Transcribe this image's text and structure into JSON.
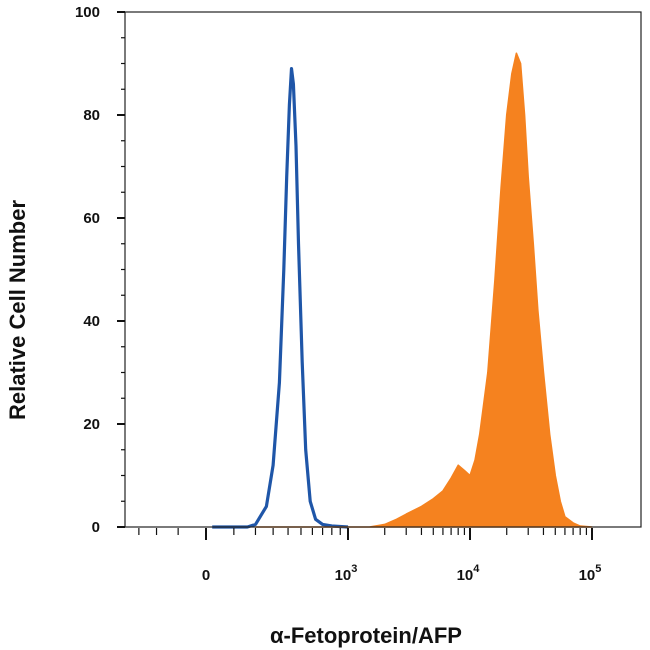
{
  "chart_data": {
    "type": "area",
    "xlabel": "α-Fetoprotein/AFP",
    "ylabel": "Relative Cell Number",
    "x_scale": "biexponential",
    "ylim": [
      0,
      100
    ],
    "y_ticks": [
      "0",
      "20",
      "40",
      "60",
      "80",
      "100"
    ],
    "x_ticks": [
      {
        "base": "0",
        "exp": ""
      },
      {
        "base": "10",
        "exp": "3"
      },
      {
        "base": "10",
        "exp": "4"
      },
      {
        "base": "10",
        "exp": "5"
      }
    ],
    "series": [
      {
        "style": "outline",
        "color": "#1f56a8",
        "points": [
          [
            20,
            0
          ],
          [
            100,
            0
          ],
          [
            160,
            0
          ],
          [
            200,
            0.5
          ],
          [
            260,
            4
          ],
          [
            300,
            12
          ],
          [
            340,
            28
          ],
          [
            370,
            50
          ],
          [
            390,
            68
          ],
          [
            410,
            82
          ],
          [
            425,
            89
          ],
          [
            440,
            86
          ],
          [
            460,
            74
          ],
          [
            480,
            55
          ],
          [
            510,
            32
          ],
          [
            540,
            15
          ],
          [
            580,
            5
          ],
          [
            630,
            1.5
          ],
          [
            700,
            0.5
          ],
          [
            800,
            0.2
          ],
          [
            1000,
            0
          ]
        ]
      },
      {
        "style": "filled",
        "color": "#f5821f",
        "points": [
          [
            200,
            0
          ],
          [
            1500,
            0
          ],
          [
            2000,
            0.5
          ],
          [
            2500,
            1.5
          ],
          [
            3000,
            2.5
          ],
          [
            4000,
            4
          ],
          [
            5000,
            5.5
          ],
          [
            6000,
            7
          ],
          [
            7000,
            9.5
          ],
          [
            8000,
            12
          ],
          [
            9000,
            11
          ],
          [
            10000,
            10
          ],
          [
            11000,
            13
          ],
          [
            12000,
            18
          ],
          [
            14000,
            30
          ],
          [
            16000,
            48
          ],
          [
            18000,
            66
          ],
          [
            20000,
            80
          ],
          [
            22000,
            88
          ],
          [
            24000,
            92
          ],
          [
            26000,
            90
          ],
          [
            28000,
            80
          ],
          [
            30000,
            68
          ],
          [
            33000,
            55
          ],
          [
            36000,
            42
          ],
          [
            40000,
            30
          ],
          [
            45000,
            18
          ],
          [
            50000,
            10
          ],
          [
            55000,
            5
          ],
          [
            60000,
            2
          ],
          [
            70000,
            0.8
          ],
          [
            80000,
            0.2
          ],
          [
            100000,
            0
          ]
        ]
      }
    ]
  }
}
